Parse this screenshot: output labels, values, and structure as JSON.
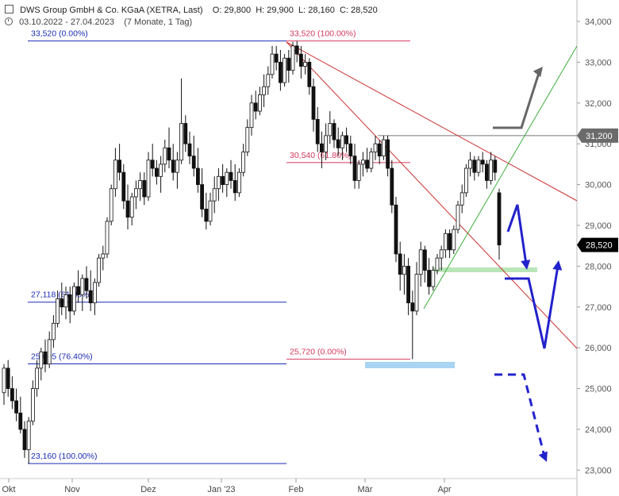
{
  "header": {
    "title": "DWS Group GmbH & Co. KGaA (XETRA, Last)",
    "ohlc": "O: 29,800  H: 29,900  L: 28,160  C: 28,520",
    "range": "03.10.2022 - 27.04.2023",
    "period": "(7 Monate, 1 Tag)"
  },
  "chart_data": {
    "type": "candlestick",
    "title": "DWS Group GmbH & Co. KGaA (XETRA, Last)",
    "x_labels": [
      "Okt",
      "Nov",
      "Dez",
      "Jan '23",
      "Feb",
      "Mär",
      "Apr"
    ],
    "x_start": "2022-10-03",
    "x_end": "2023-04-27",
    "y_ticks": [
      "34,000",
      "33,000",
      "32,000",
      "31,000",
      "30,000",
      "29,000",
      "28,000",
      "27,000",
      "26,000",
      "25,000",
      "24,000",
      "23,000"
    ],
    "ylim": [
      22.6,
      34.3
    ],
    "last_price": "28,520",
    "last_price_value": 28.52,
    "marked_level": "31,200",
    "marked_level_value": 31.2,
    "fib_up": {
      "color": "#1a2bb5",
      "labels": [
        "33,520 (0.00%)",
        "27,118 (61.80%)",
        "25,605 (76.40%)",
        "23,160 (100.00%)"
      ],
      "levels": [
        33.52,
        27.118,
        25.605,
        23.16
      ]
    },
    "fib_down": {
      "color": "#d43a5e",
      "labels": [
        "33,520 (100.00%)",
        "30,540 (61.80%)",
        "25,720 (0.00%)"
      ],
      "levels": [
        33.52,
        30.54,
        25.72
      ]
    },
    "candles": [
      {
        "o": 24.9,
        "h": 25.6,
        "l": 24.6,
        "c": 25.5
      },
      {
        "o": 25.5,
        "h": 25.7,
        "l": 24.8,
        "c": 25.0
      },
      {
        "o": 25.0,
        "h": 25.3,
        "l": 24.5,
        "c": 24.7
      },
      {
        "o": 24.7,
        "h": 25.0,
        "l": 24.2,
        "c": 24.4
      },
      {
        "o": 24.4,
        "h": 24.8,
        "l": 23.9,
        "c": 24.0
      },
      {
        "o": 24.0,
        "h": 24.2,
        "l": 23.3,
        "c": 23.5
      },
      {
        "o": 23.5,
        "h": 24.3,
        "l": 23.16,
        "c": 24.2
      },
      {
        "o": 24.2,
        "h": 25.2,
        "l": 24.1,
        "c": 25.0
      },
      {
        "o": 25.0,
        "h": 25.7,
        "l": 24.8,
        "c": 25.5
      },
      {
        "o": 25.5,
        "h": 26.0,
        "l": 25.2,
        "c": 25.9
      },
      {
        "o": 25.9,
        "h": 26.2,
        "l": 25.4,
        "c": 25.6
      },
      {
        "o": 25.6,
        "h": 26.4,
        "l": 25.5,
        "c": 26.2
      },
      {
        "o": 26.2,
        "h": 26.8,
        "l": 26.0,
        "c": 26.6
      },
      {
        "o": 26.6,
        "h": 27.4,
        "l": 26.5,
        "c": 27.2
      },
      {
        "o": 27.2,
        "h": 27.6,
        "l": 26.8,
        "c": 27.0
      },
      {
        "o": 27.0,
        "h": 27.5,
        "l": 26.7,
        "c": 27.3
      },
      {
        "o": 27.3,
        "h": 27.5,
        "l": 26.6,
        "c": 26.9
      },
      {
        "o": 26.9,
        "h": 27.6,
        "l": 26.8,
        "c": 27.5
      },
      {
        "o": 27.5,
        "h": 27.9,
        "l": 27.1,
        "c": 27.3
      },
      {
        "o": 27.3,
        "h": 27.8,
        "l": 26.9,
        "c": 27.7
      },
      {
        "o": 27.7,
        "h": 28.0,
        "l": 27.2,
        "c": 27.4
      },
      {
        "o": 27.4,
        "h": 27.9,
        "l": 26.9,
        "c": 27.1
      },
      {
        "o": 27.1,
        "h": 27.7,
        "l": 26.8,
        "c": 27.6
      },
      {
        "o": 27.6,
        "h": 28.3,
        "l": 27.5,
        "c": 28.2
      },
      {
        "o": 28.2,
        "h": 28.5,
        "l": 27.9,
        "c": 28.3
      },
      {
        "o": 28.3,
        "h": 29.2,
        "l": 28.2,
        "c": 29.1
      },
      {
        "o": 29.1,
        "h": 30.0,
        "l": 29.0,
        "c": 29.9
      },
      {
        "o": 29.9,
        "h": 30.9,
        "l": 29.7,
        "c": 30.6
      },
      {
        "o": 30.6,
        "h": 31.0,
        "l": 30.1,
        "c": 30.3
      },
      {
        "o": 30.3,
        "h": 30.5,
        "l": 29.4,
        "c": 29.6
      },
      {
        "o": 29.6,
        "h": 30.0,
        "l": 28.9,
        "c": 29.2
      },
      {
        "o": 29.2,
        "h": 29.8,
        "l": 29.0,
        "c": 29.7
      },
      {
        "o": 29.7,
        "h": 30.1,
        "l": 29.4,
        "c": 29.9
      },
      {
        "o": 29.9,
        "h": 30.3,
        "l": 29.6,
        "c": 30.1
      },
      {
        "o": 30.1,
        "h": 30.3,
        "l": 29.5,
        "c": 29.7
      },
      {
        "o": 29.7,
        "h": 30.8,
        "l": 29.6,
        "c": 30.6
      },
      {
        "o": 30.6,
        "h": 31.0,
        "l": 30.2,
        "c": 30.4
      },
      {
        "o": 30.4,
        "h": 30.6,
        "l": 30.0,
        "c": 30.2
      },
      {
        "o": 30.2,
        "h": 30.7,
        "l": 29.8,
        "c": 30.5
      },
      {
        "o": 30.5,
        "h": 31.1,
        "l": 30.3,
        "c": 30.9
      },
      {
        "o": 30.9,
        "h": 31.4,
        "l": 30.4,
        "c": 30.6
      },
      {
        "o": 30.6,
        "h": 31.0,
        "l": 30.1,
        "c": 30.3
      },
      {
        "o": 30.3,
        "h": 30.8,
        "l": 29.9,
        "c": 30.6
      },
      {
        "o": 30.6,
        "h": 32.6,
        "l": 30.5,
        "c": 31.5
      },
      {
        "o": 31.5,
        "h": 31.7,
        "l": 30.8,
        "c": 31.0
      },
      {
        "o": 31.0,
        "h": 31.3,
        "l": 30.5,
        "c": 30.7
      },
      {
        "o": 30.7,
        "h": 31.2,
        "l": 30.2,
        "c": 30.4
      },
      {
        "o": 30.4,
        "h": 30.9,
        "l": 29.8,
        "c": 30.0
      },
      {
        "o": 30.0,
        "h": 30.4,
        "l": 29.2,
        "c": 29.4
      },
      {
        "o": 29.4,
        "h": 29.8,
        "l": 28.9,
        "c": 29.1
      },
      {
        "o": 29.1,
        "h": 29.8,
        "l": 29.0,
        "c": 29.6
      },
      {
        "o": 29.6,
        "h": 30.2,
        "l": 29.3,
        "c": 29.9
      },
      {
        "o": 29.9,
        "h": 30.4,
        "l": 29.6,
        "c": 30.2
      },
      {
        "o": 30.2,
        "h": 30.5,
        "l": 29.8,
        "c": 30.0
      },
      {
        "o": 30.0,
        "h": 30.4,
        "l": 29.7,
        "c": 30.3
      },
      {
        "o": 30.3,
        "h": 30.6,
        "l": 29.9,
        "c": 30.1
      },
      {
        "o": 30.1,
        "h": 30.5,
        "l": 29.6,
        "c": 29.8
      },
      {
        "o": 29.8,
        "h": 30.4,
        "l": 29.7,
        "c": 30.3
      },
      {
        "o": 30.3,
        "h": 31.0,
        "l": 30.2,
        "c": 30.8
      },
      {
        "o": 30.8,
        "h": 31.6,
        "l": 30.7,
        "c": 31.4
      },
      {
        "o": 31.4,
        "h": 32.2,
        "l": 31.2,
        "c": 32.0
      },
      {
        "o": 32.0,
        "h": 32.3,
        "l": 31.6,
        "c": 31.8
      },
      {
        "o": 31.8,
        "h": 32.4,
        "l": 31.7,
        "c": 32.2
      },
      {
        "o": 32.2,
        "h": 32.7,
        "l": 31.9,
        "c": 32.4
      },
      {
        "o": 32.4,
        "h": 32.9,
        "l": 32.2,
        "c": 32.7
      },
      {
        "o": 32.7,
        "h": 33.4,
        "l": 32.6,
        "c": 33.2
      },
      {
        "o": 33.2,
        "h": 33.4,
        "l": 32.8,
        "c": 33.0
      },
      {
        "o": 33.0,
        "h": 33.3,
        "l": 32.3,
        "c": 32.5
      },
      {
        "o": 32.5,
        "h": 33.2,
        "l": 32.4,
        "c": 33.1
      },
      {
        "o": 33.1,
        "h": 33.3,
        "l": 32.5,
        "c": 32.8
      },
      {
        "o": 32.8,
        "h": 33.5,
        "l": 32.7,
        "c": 33.4
      },
      {
        "o": 33.4,
        "h": 33.52,
        "l": 33.0,
        "c": 33.2
      },
      {
        "o": 33.2,
        "h": 33.4,
        "l": 32.6,
        "c": 32.9
      },
      {
        "o": 32.9,
        "h": 33.2,
        "l": 32.7,
        "c": 33.0
      },
      {
        "o": 33.0,
        "h": 33.1,
        "l": 32.2,
        "c": 32.4
      },
      {
        "o": 32.4,
        "h": 32.6,
        "l": 31.3,
        "c": 31.6
      },
      {
        "o": 31.6,
        "h": 31.9,
        "l": 30.8,
        "c": 31.0
      },
      {
        "o": 31.0,
        "h": 31.3,
        "l": 30.4,
        "c": 30.8
      },
      {
        "o": 30.8,
        "h": 31.5,
        "l": 30.6,
        "c": 31.2
      },
      {
        "o": 31.2,
        "h": 31.8,
        "l": 31.0,
        "c": 31.5
      },
      {
        "o": 31.5,
        "h": 31.6,
        "l": 30.9,
        "c": 31.1
      },
      {
        "o": 31.1,
        "h": 31.4,
        "l": 30.7,
        "c": 30.9
      },
      {
        "o": 30.9,
        "h": 31.3,
        "l": 30.6,
        "c": 31.2
      },
      {
        "o": 31.2,
        "h": 31.4,
        "l": 30.8,
        "c": 31.0
      },
      {
        "o": 31.0,
        "h": 31.2,
        "l": 30.5,
        "c": 30.7
      },
      {
        "o": 30.7,
        "h": 31.0,
        "l": 29.9,
        "c": 30.1
      },
      {
        "o": 30.1,
        "h": 30.6,
        "l": 29.9,
        "c": 30.5
      },
      {
        "o": 30.5,
        "h": 30.8,
        "l": 30.2,
        "c": 30.6
      },
      {
        "o": 30.6,
        "h": 30.9,
        "l": 30.3,
        "c": 30.4
      },
      {
        "o": 30.4,
        "h": 30.9,
        "l": 30.3,
        "c": 30.8
      },
      {
        "o": 30.8,
        "h": 31.2,
        "l": 30.6,
        "c": 31.0
      },
      {
        "o": 31.0,
        "h": 31.1,
        "l": 30.5,
        "c": 30.7
      },
      {
        "o": 30.7,
        "h": 31.2,
        "l": 30.6,
        "c": 31.1
      },
      {
        "o": 31.1,
        "h": 31.2,
        "l": 30.2,
        "c": 30.4
      },
      {
        "o": 30.4,
        "h": 30.6,
        "l": 29.3,
        "c": 29.5
      },
      {
        "o": 29.5,
        "h": 29.7,
        "l": 28.1,
        "c": 28.3
      },
      {
        "o": 28.3,
        "h": 28.6,
        "l": 27.4,
        "c": 27.8
      },
      {
        "o": 27.8,
        "h": 28.3,
        "l": 27.3,
        "c": 28.0
      },
      {
        "o": 28.0,
        "h": 28.2,
        "l": 26.8,
        "c": 27.1
      },
      {
        "o": 27.1,
        "h": 27.4,
        "l": 25.72,
        "c": 26.9
      },
      {
        "o": 26.9,
        "h": 28.1,
        "l": 26.8,
        "c": 27.8
      },
      {
        "o": 27.8,
        "h": 28.6,
        "l": 27.5,
        "c": 28.4
      },
      {
        "o": 28.4,
        "h": 28.5,
        "l": 27.6,
        "c": 27.9
      },
      {
        "o": 27.9,
        "h": 28.2,
        "l": 27.3,
        "c": 27.5
      },
      {
        "o": 27.5,
        "h": 28.0,
        "l": 27.4,
        "c": 27.9
      },
      {
        "o": 27.9,
        "h": 28.3,
        "l": 27.8,
        "c": 28.2
      },
      {
        "o": 28.2,
        "h": 28.5,
        "l": 27.9,
        "c": 28.4
      },
      {
        "o": 28.4,
        "h": 28.9,
        "l": 28.2,
        "c": 28.8
      },
      {
        "o": 28.8,
        "h": 28.9,
        "l": 28.2,
        "c": 28.4
      },
      {
        "o": 28.4,
        "h": 29.0,
        "l": 28.3,
        "c": 28.9
      },
      {
        "o": 28.9,
        "h": 29.6,
        "l": 28.8,
        "c": 29.5
      },
      {
        "o": 29.5,
        "h": 30.0,
        "l": 29.3,
        "c": 29.8
      },
      {
        "o": 29.8,
        "h": 30.5,
        "l": 29.7,
        "c": 30.4
      },
      {
        "o": 30.4,
        "h": 30.8,
        "l": 30.2,
        "c": 30.6
      },
      {
        "o": 30.6,
        "h": 30.7,
        "l": 30.1,
        "c": 30.3
      },
      {
        "o": 30.3,
        "h": 30.7,
        "l": 30.2,
        "c": 30.6
      },
      {
        "o": 30.6,
        "h": 30.8,
        "l": 30.3,
        "c": 30.5
      },
      {
        "o": 30.5,
        "h": 30.6,
        "l": 29.9,
        "c": 30.1
      },
      {
        "o": 30.1,
        "h": 30.8,
        "l": 30.0,
        "c": 30.6
      },
      {
        "o": 30.6,
        "h": 30.7,
        "l": 30.1,
        "c": 30.3
      },
      {
        "o": 29.8,
        "h": 29.9,
        "l": 28.16,
        "c": 28.52
      }
    ]
  }
}
